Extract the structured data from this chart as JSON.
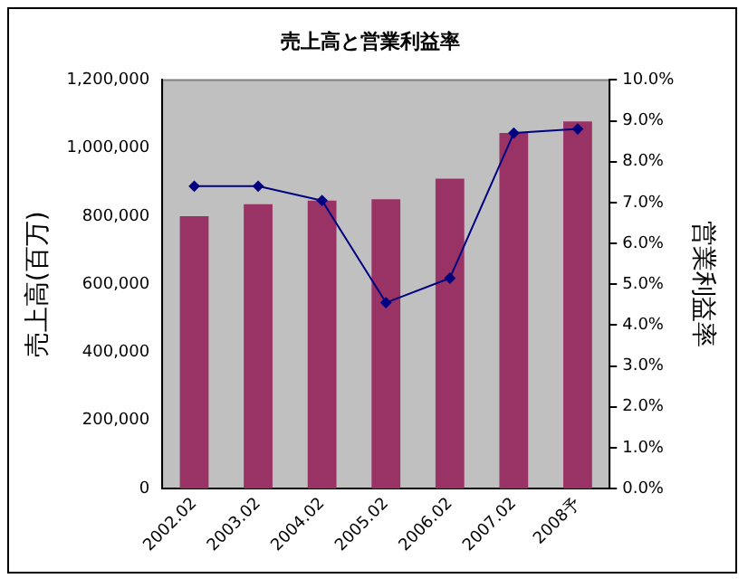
{
  "chart_data": {
    "type": "bar",
    "title": "売上高と営業利益率",
    "ylabel": "売上高(百万)",
    "y2label": "営業利益率",
    "categories": [
      "2002.02",
      "2003.02",
      "2004.02",
      "2005.02",
      "2006.02",
      "2007.02",
      "2008予"
    ],
    "series": [
      {
        "color": "#993366",
        "values": [
          800000,
          835000,
          846000,
          850000,
          910000,
          1044000,
          1078000
        ]
      },
      {
        "type": "line",
        "axis": "y2",
        "color": "#000080",
        "marker": "diamond",
        "values": [
          7.4,
          7.4,
          7.05,
          4.55,
          5.15,
          8.7,
          8.8
        ]
      }
    ],
    "ylim": [
      0,
      1200000
    ],
    "yticks": [
      {
        "value": 0,
        "label": "0"
      },
      {
        "value": 200000,
        "label": "200,000"
      },
      {
        "value": 400000,
        "label": "400,000"
      },
      {
        "value": 600000,
        "label": "600,000"
      },
      {
        "value": 800000,
        "label": "800,000"
      },
      {
        "value": 1000000,
        "label": "1,000,000"
      },
      {
        "value": 1200000,
        "label": "1,200,000"
      }
    ],
    "y2lim": [
      0,
      10
    ],
    "y2ticks": [
      {
        "value": 0,
        "label": "0.0%"
      },
      {
        "value": 1,
        "label": "1.0%"
      },
      {
        "value": 2,
        "label": "2.0%"
      },
      {
        "value": 3,
        "label": "3.0%"
      },
      {
        "value": 4,
        "label": "4.0%"
      },
      {
        "value": 5,
        "label": "5.0%"
      },
      {
        "value": 6,
        "label": "6.0%"
      },
      {
        "value": 7,
        "label": "7.0%"
      },
      {
        "value": 8,
        "label": "8.0%"
      },
      {
        "value": 9,
        "label": "9.0%"
      },
      {
        "value": 10,
        "label": "10.0%"
      }
    ],
    "grid": false,
    "legend": false
  }
}
